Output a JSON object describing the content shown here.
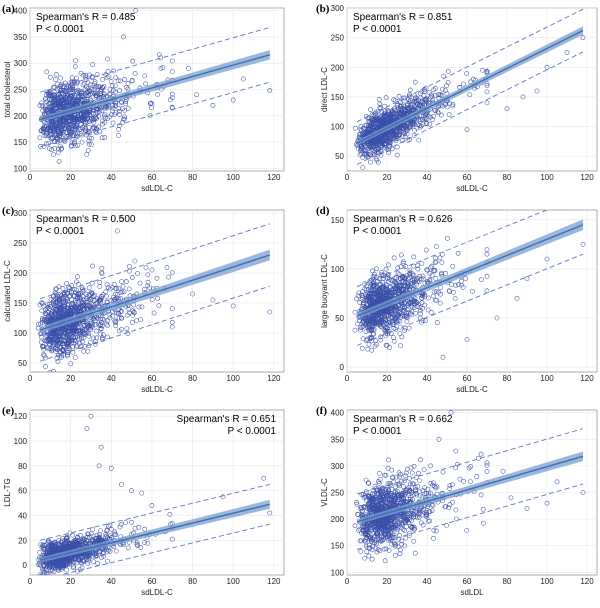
{
  "colors": {
    "points": "#3a4fa8",
    "fit": "#3d6eb0",
    "band": "#7aa0d0",
    "prediction": "#5a78c8",
    "grid": "#e6e6e6"
  },
  "chart_data": [
    {
      "letter": "(a)",
      "type": "scatter",
      "ylabel": "total cholesterol",
      "xlabel": "sdLDL-C",
      "stat_r": "Spearman's R = 0.485",
      "stat_p": "P < 0.0001",
      "stat_pos": "top-left",
      "xlim": [
        0,
        125
      ],
      "ylim": [
        95,
        405
      ],
      "xticks": [
        0,
        20,
        40,
        60,
        80,
        100,
        120
      ],
      "yticks": [
        100,
        150,
        200,
        250,
        300,
        350,
        400
      ],
      "fit": {
        "x0": 5,
        "y0": 193,
        "x1": 118,
        "y1": 316
      },
      "band_halfwidth": 5,
      "pred_offset": 52,
      "scatter": {
        "n": 950,
        "x_median": 20,
        "x_spread": 0.5,
        "y_noise": 30,
        "seed": 11
      },
      "outliers": [
        [
          52,
          400
        ],
        [
          46,
          350
        ],
        [
          118,
          248
        ],
        [
          100,
          230
        ],
        [
          90,
          220
        ],
        [
          78,
          290
        ],
        [
          105,
          270
        ],
        [
          82,
          240
        ]
      ]
    },
    {
      "letter": "(b)",
      "type": "scatter",
      "ylabel": "direct LDL-C",
      "xlabel": "sdLDL-C",
      "stat_r": "Spearman's R = 0.851",
      "stat_p": "P < 0.0001",
      "stat_pos": "top-left",
      "xlim": [
        0,
        125
      ],
      "ylim": [
        25,
        300
      ],
      "xticks": [
        0,
        20,
        40,
        60,
        80,
        100,
        120
      ],
      "yticks": [
        50,
        100,
        150,
        200,
        250,
        300
      ],
      "fit": {
        "x0": 5,
        "y0": 72,
        "x1": 118,
        "y1": 262
      },
      "band_halfwidth": 4,
      "pred_offset": 36,
      "scatter": {
        "n": 950,
        "x_median": 20,
        "x_spread": 0.5,
        "y_noise": 17,
        "seed": 23
      },
      "outliers": [
        [
          118,
          250
        ],
        [
          100,
          200
        ],
        [
          95,
          160
        ],
        [
          88,
          150
        ],
        [
          60,
          95
        ],
        [
          70,
          140
        ],
        [
          110,
          225
        ],
        [
          80,
          130
        ]
      ]
    },
    {
      "letter": "(c)",
      "type": "scatter",
      "ylabel": "calculated LDL-C",
      "xlabel": "sdLDL-C",
      "stat_r": "Spearman's R = 0.500",
      "stat_p": "P < 0.0001",
      "stat_pos": "top-left",
      "xlim": [
        0,
        125
      ],
      "ylim": [
        35,
        305
      ],
      "xticks": [
        0,
        20,
        40,
        60,
        80,
        100,
        120
      ],
      "yticks": [
        50,
        100,
        150,
        200,
        250,
        300
      ],
      "fit": {
        "x0": 5,
        "y0": 105,
        "x1": 118,
        "y1": 230
      },
      "band_halfwidth": 5,
      "pred_offset": 52,
      "scatter": {
        "n": 950,
        "x_median": 20,
        "x_spread": 0.5,
        "y_noise": 26,
        "seed": 37
      },
      "outliers": [
        [
          45,
          290
        ],
        [
          43,
          270
        ],
        [
          118,
          135
        ],
        [
          100,
          145
        ],
        [
          80,
          165
        ],
        [
          90,
          155
        ],
        [
          60,
          205
        ],
        [
          70,
          110
        ]
      ]
    },
    {
      "letter": "(d)",
      "type": "scatter",
      "ylabel": "large buoyant LDL-C",
      "xlabel": "sdLDL-C",
      "stat_r": "Spearman's R = 0.626",
      "stat_p": "P < 0.0001",
      "stat_pos": "top-left",
      "xlim": [
        0,
        125
      ],
      "ylim": [
        -5,
        160
      ],
      "xticks": [
        0,
        20,
        40,
        60,
        80,
        100,
        120
      ],
      "yticks": [
        0,
        50,
        100,
        150
      ],
      "fit": {
        "x0": 5,
        "y0": 52,
        "x1": 118,
        "y1": 145
      },
      "band_halfwidth": 3,
      "pred_offset": 30,
      "scatter": {
        "n": 950,
        "x_median": 20,
        "x_spread": 0.5,
        "y_noise": 16,
        "seed": 53
      },
      "outliers": [
        [
          118,
          125
        ],
        [
          90,
          90
        ],
        [
          75,
          50
        ],
        [
          60,
          28
        ],
        [
          48,
          10
        ],
        [
          100,
          110
        ],
        [
          85,
          70
        ],
        [
          70,
          115
        ]
      ]
    },
    {
      "letter": "(e)",
      "type": "scatter",
      "ylabel": "LDL-TG",
      "xlabel": "sdLDL-C",
      "stat_r": "Spearman's R = 0.651",
      "stat_p": "P < 0.0001",
      "stat_pos": "top-right",
      "xlim": [
        0,
        125
      ],
      "ylim": [
        -8,
        125
      ],
      "xticks": [
        0,
        20,
        40,
        60,
        80,
        100,
        120
      ],
      "yticks": [
        0,
        20,
        40,
        60,
        80,
        100,
        120
      ],
      "fit": {
        "x0": 5,
        "y0": 4,
        "x1": 118,
        "y1": 49
      },
      "band_halfwidth": 2,
      "pred_offset": 16,
      "scatter": {
        "n": 950,
        "x_median": 18,
        "x_spread": 0.5,
        "y_noise": 6,
        "seed": 71
      },
      "outliers": [
        [
          30,
          120
        ],
        [
          28,
          110
        ],
        [
          35,
          95
        ],
        [
          34,
          80
        ],
        [
          40,
          78
        ],
        [
          45,
          65
        ],
        [
          50,
          60
        ],
        [
          55,
          58
        ],
        [
          60,
          48
        ],
        [
          95,
          55
        ],
        [
          115,
          70
        ],
        [
          118,
          42
        ]
      ]
    },
    {
      "letter": "(f)",
      "type": "scatter",
      "ylabel": "VLDL-C",
      "xlabel": "sdLDL",
      "stat_r": "Spearman's R = 0.662",
      "stat_p": "P < 0.0001",
      "stat_pos": "top-left",
      "xlim": [
        0,
        125
      ],
      "ylim": [
        95,
        405
      ],
      "xticks": [
        0,
        20,
        40,
        60,
        80,
        100,
        120
      ],
      "yticks": [
        100,
        150,
        200,
        250,
        300,
        350,
        400
      ],
      "fit": {
        "x0": 5,
        "y0": 195,
        "x1": 118,
        "y1": 318
      },
      "band_halfwidth": 5,
      "pred_offset": 52,
      "scatter": {
        "n": 950,
        "x_median": 20,
        "x_spread": 0.5,
        "y_noise": 30,
        "seed": 97
      },
      "outliers": [
        [
          52,
          400
        ],
        [
          46,
          350
        ],
        [
          118,
          250
        ],
        [
          100,
          230
        ],
        [
          90,
          220
        ],
        [
          78,
          290
        ],
        [
          105,
          270
        ],
        [
          82,
          240
        ]
      ]
    }
  ]
}
